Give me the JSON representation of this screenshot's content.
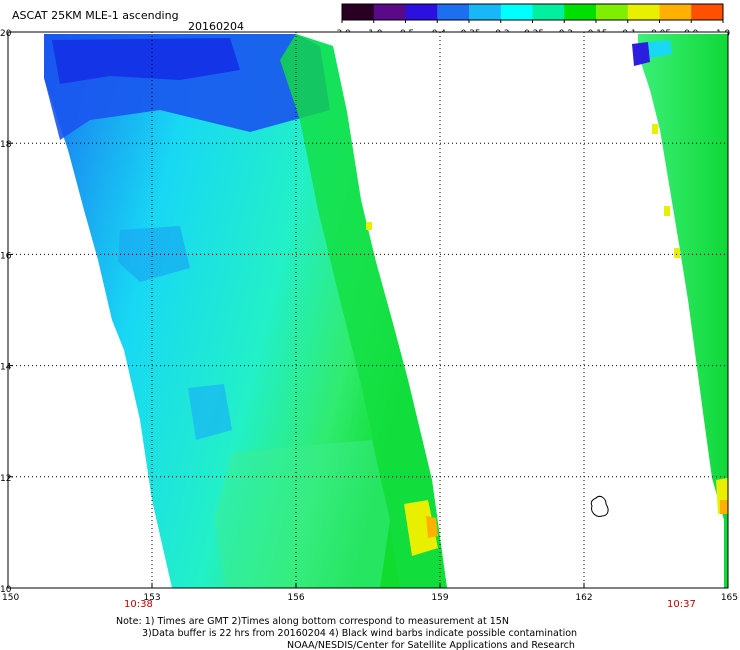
{
  "header": {
    "title": "ASCAT 25KM MLE-1 ascending",
    "date": "20160204"
  },
  "colorbar": {
    "tick_labels": [
      "-3.0",
      "-1.0",
      "-0.5",
      "-0.4",
      "-0.35",
      "-0.3",
      "-0.25",
      "-0.2",
      "-0.15",
      "-0.1",
      "-0.05",
      "0.0",
      "1.0"
    ],
    "colors": [
      "#2a0022",
      "#5a0a88",
      "#2c10e0",
      "#1e6ef0",
      "#18b8f8",
      "#00ffff",
      "#00f0a0",
      "#00e000",
      "#80ee00",
      "#e8f000",
      "#ffb000",
      "#ff5000"
    ]
  },
  "map": {
    "lat_ticks": [
      "10",
      "12",
      "14",
      "16",
      "18",
      "20"
    ],
    "lon_ticks": [
      "150",
      "153",
      "156",
      "159",
      "162",
      "165"
    ],
    "pass_times": [
      "10:38",
      "10:37"
    ],
    "time_color": "#c00000",
    "swath_colors": {
      "deep_blue": "#1540f0",
      "blue": "#1a80f2",
      "cyan": "#15e6f4",
      "light_cyan": "#2af2dc",
      "aqua_green": "#35f0a8",
      "green": "#18e050",
      "bright_green": "#5cf020",
      "yellow": "#e6f000",
      "orange": "#ffb000"
    }
  },
  "notes": {
    "line1": "Note: 1) Times are GMT 2)Times along bottom correspond to measurement at 15N",
    "line2": "3)Data buffer is 22 hrs from 20160204 4) Black wind barbs indicate possible contamination",
    "line3": "NOAA/NESDIS/Center for Satellite Applications and Research"
  }
}
